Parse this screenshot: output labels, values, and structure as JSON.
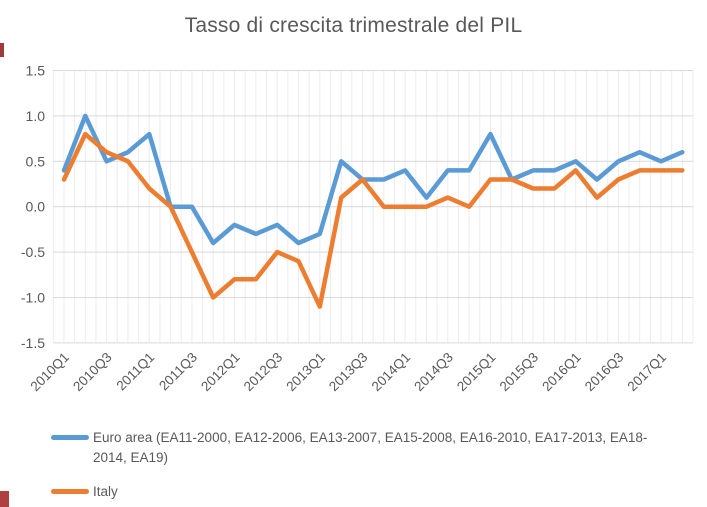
{
  "title": "Tasso di crescita trimestrale del PIL",
  "colors": {
    "euro_area": "#5B9BD5",
    "italy": "#ED7D31",
    "axis_text": "#595959",
    "grid_major": "#d9d9d9",
    "grid_minor": "#ececec",
    "title_text": "#595959"
  },
  "legend": {
    "position": "bottom",
    "entries": [
      {
        "label": "Euro area (EA11-2000, EA12-2006, EA13-2007, EA15-2008, EA16-2010, EA17-2013, EA18-2014, EA19)",
        "color": "#5B9BD5"
      },
      {
        "label": "Italy",
        "color": "#ED7D31"
      }
    ]
  },
  "chart_data": {
    "type": "line",
    "title": "Tasso di crescita trimestrale del PIL",
    "xlabel": "",
    "ylabel": "",
    "ylim": [
      -1.5,
      1.5
    ],
    "grid": "horizontal major + vertical minor",
    "legend_position": "bottom",
    "y_tick_labels": [
      "1.5",
      "1.0",
      "0.5",
      "0.0",
      "-0.5",
      "-1.0",
      "-1.5"
    ],
    "y_tick_values": [
      1.5,
      1.0,
      0.5,
      0.0,
      -0.5,
      -1.0,
      -1.5
    ],
    "x_tick_labels": [
      "2010Q1",
      "2010Q3",
      "2011Q1",
      "2011Q3",
      "2012Q1",
      "2012Q3",
      "2013Q1",
      "2013Q3",
      "2014Q1",
      "2014Q3",
      "2015Q1",
      "2015Q3",
      "2016Q1",
      "2016Q3",
      "2017Q1"
    ],
    "x_tick_every": 2,
    "categories": [
      "2010Q1",
      "2010Q2",
      "2010Q3",
      "2010Q4",
      "2011Q1",
      "2011Q2",
      "2011Q3",
      "2011Q4",
      "2012Q1",
      "2012Q2",
      "2012Q3",
      "2012Q4",
      "2013Q1",
      "2013Q2",
      "2013Q3",
      "2013Q4",
      "2014Q1",
      "2014Q2",
      "2014Q3",
      "2014Q4",
      "2015Q1",
      "2015Q2",
      "2015Q3",
      "2015Q4",
      "2016Q1",
      "2016Q2",
      "2016Q3",
      "2016Q4",
      "2017Q1",
      "2017Q2"
    ],
    "series": [
      {
        "name": "Euro area (EA11-2000, EA12-2006, EA13-2007, EA15-2008, EA16-2010, EA17-2013, EA18-2014, EA19)",
        "color": "#5B9BD5",
        "values": [
          0.4,
          1.0,
          0.5,
          0.6,
          0.8,
          0.0,
          0.0,
          -0.4,
          -0.2,
          -0.3,
          -0.2,
          -0.4,
          -0.3,
          0.5,
          0.3,
          0.3,
          0.4,
          0.1,
          0.4,
          0.4,
          0.8,
          0.3,
          0.4,
          0.4,
          0.5,
          0.3,
          0.5,
          0.6,
          0.5,
          0.6
        ]
      },
      {
        "name": "Italy",
        "color": "#ED7D31",
        "values": [
          0.3,
          0.8,
          0.6,
          0.5,
          0.2,
          0.0,
          -0.5,
          -1.0,
          -0.8,
          -0.8,
          -0.5,
          -0.6,
          -1.1,
          0.1,
          0.3,
          0.0,
          0.0,
          0.0,
          0.1,
          0.0,
          0.3,
          0.3,
          0.2,
          0.2,
          0.4,
          0.1,
          0.3,
          0.4,
          0.4,
          0.4
        ]
      }
    ]
  },
  "layout_note": ""
}
